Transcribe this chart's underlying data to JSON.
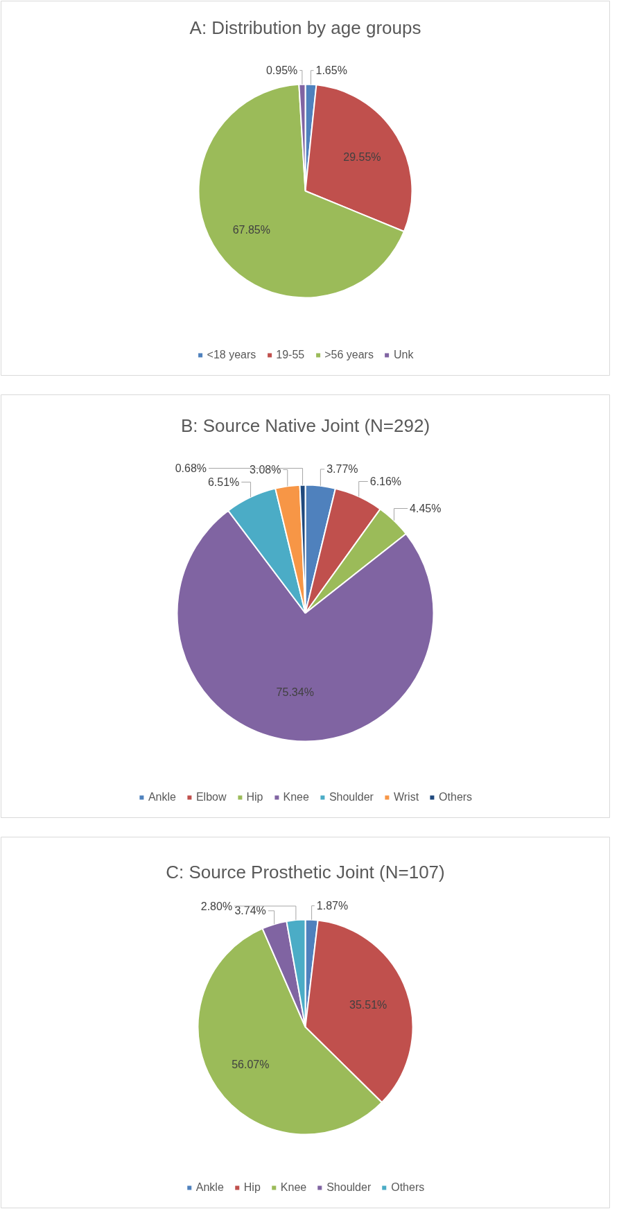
{
  "chart_data": [
    {
      "type": "pie",
      "title": "A: Distribution by age groups",
      "categories": [
        "<18 years",
        "19-55",
        ">56 years",
        "Unk"
      ],
      "values": [
        1.65,
        29.55,
        67.85,
        0.95
      ],
      "colors": [
        "#4f81bd",
        "#c0504d",
        "#9bbb59",
        "#8064a2"
      ],
      "value_labels": [
        "1.65%",
        "29.55%",
        "67.85%",
        "0.95%"
      ],
      "legend": "bottom"
    },
    {
      "type": "pie",
      "title": "B: Source Native Joint (N=292)",
      "categories": [
        "Ankle",
        "Elbow",
        "Hip",
        "Knee",
        "Shoulder",
        "Wrist",
        "Others"
      ],
      "values": [
        3.77,
        6.16,
        4.45,
        75.34,
        6.51,
        3.08,
        0.68
      ],
      "colors": [
        "#4f81bd",
        "#c0504d",
        "#9bbb59",
        "#8064a2",
        "#4bacc6",
        "#f79646",
        "#1f497d"
      ],
      "value_labels": [
        "3.77%",
        "6.16%",
        "4.45%",
        "75.34%",
        "6.51%",
        "3.08%",
        "0.68%"
      ],
      "legend": "bottom"
    },
    {
      "type": "pie",
      "title": "C: Source Prosthetic Joint (N=107)",
      "categories": [
        "Ankle",
        "Hip",
        "Knee",
        "Shoulder",
        "Others"
      ],
      "values": [
        1.87,
        35.51,
        56.07,
        3.74,
        2.8
      ],
      "colors": [
        "#4f81bd",
        "#c0504d",
        "#9bbb59",
        "#8064a2",
        "#4bacc6"
      ],
      "value_labels": [
        "1.87%",
        "35.51%",
        "56.07%",
        "3.74%",
        "2.80%"
      ],
      "legend": "bottom"
    }
  ]
}
